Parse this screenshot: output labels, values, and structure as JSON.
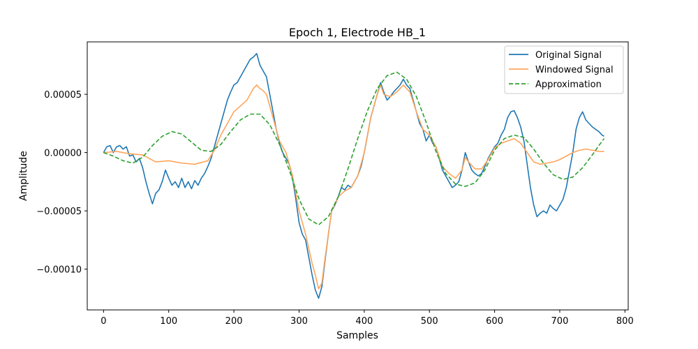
{
  "chart_data": {
    "type": "line",
    "title": "Epoch 1, Electrode HB_1",
    "xlabel": "Samples",
    "ylabel": "Amplitude",
    "xlim": [
      -25,
      805
    ],
    "ylim": [
      -0.000135,
      9.5e-05
    ],
    "xticks": [
      0,
      100,
      200,
      300,
      400,
      500,
      600,
      700,
      800
    ],
    "xtick_labels": [
      "0",
      "100",
      "200",
      "300",
      "400",
      "500",
      "600",
      "700",
      "800"
    ],
    "yticks": [
      -0.0001,
      -5e-05,
      0.0,
      5e-05
    ],
    "ytick_labels": [
      "−0.00010",
      "−0.00005",
      "0.00000",
      "0.00005"
    ],
    "grid": false,
    "legend_position": "top-right",
    "series": [
      {
        "name": "Original Signal",
        "color": "#1f77b4",
        "style": "solid",
        "points": [
          [
            0,
            0.0
          ],
          [
            5,
            5e-06
          ],
          [
            10,
            6e-06
          ],
          [
            15,
            0.0
          ],
          [
            20,
            5e-06
          ],
          [
            25,
            6e-06
          ],
          [
            30,
            3e-06
          ],
          [
            35,
            5e-06
          ],
          [
            40,
            -3e-06
          ],
          [
            45,
            -2e-06
          ],
          [
            50,
            -8e-06
          ],
          [
            55,
            -5e-06
          ],
          [
            60,
            -1.3e-05
          ],
          [
            65,
            -2.5e-05
          ],
          [
            70,
            -3.5e-05
          ],
          [
            75,
            -4.4e-05
          ],
          [
            80,
            -3.5e-05
          ],
          [
            85,
            -3.2e-05
          ],
          [
            90,
            -2.5e-05
          ],
          [
            95,
            -1.5e-05
          ],
          [
            100,
            -2.2e-05
          ],
          [
            105,
            -2.8e-05
          ],
          [
            110,
            -2.5e-05
          ],
          [
            115,
            -3e-05
          ],
          [
            120,
            -2.2e-05
          ],
          [
            125,
            -3e-05
          ],
          [
            130,
            -2.5e-05
          ],
          [
            135,
            -3.1e-05
          ],
          [
            140,
            -2.4e-05
          ],
          [
            145,
            -2.8e-05
          ],
          [
            150,
            -2.2e-05
          ],
          [
            155,
            -1.8e-05
          ],
          [
            160,
            -1.2e-05
          ],
          [
            165,
            -5e-06
          ],
          [
            170,
            5e-06
          ],
          [
            175,
            1.5e-05
          ],
          [
            180,
            2.5e-05
          ],
          [
            185,
            3.5e-05
          ],
          [
            190,
            4.5e-05
          ],
          [
            195,
            5.2e-05
          ],
          [
            200,
            5.8e-05
          ],
          [
            205,
            6e-05
          ],
          [
            210,
            6.5e-05
          ],
          [
            215,
            7e-05
          ],
          [
            220,
            7.5e-05
          ],
          [
            225,
            8e-05
          ],
          [
            230,
            8.2e-05
          ],
          [
            235,
            8.5e-05
          ],
          [
            240,
            7.5e-05
          ],
          [
            245,
            7e-05
          ],
          [
            250,
            6.5e-05
          ],
          [
            255,
            5e-05
          ],
          [
            260,
            3.5e-05
          ],
          [
            265,
            2e-05
          ],
          [
            270,
            8e-06
          ],
          [
            275,
            0.0
          ],
          [
            280,
            -5e-06
          ],
          [
            285,
            -1e-05
          ],
          [
            290,
            -2.2e-05
          ],
          [
            295,
            -4e-05
          ],
          [
            300,
            -6e-05
          ],
          [
            305,
            -7e-05
          ],
          [
            310,
            -7.5e-05
          ],
          [
            315,
            -9e-05
          ],
          [
            320,
            -0.000105
          ],
          [
            325,
            -0.000118
          ],
          [
            330,
            -0.000125
          ],
          [
            335,
            -0.000115
          ],
          [
            340,
            -9.2e-05
          ],
          [
            345,
            -7e-05
          ],
          [
            350,
            -5e-05
          ],
          [
            355,
            -4.5e-05
          ],
          [
            360,
            -3.8e-05
          ],
          [
            365,
            -3e-05
          ],
          [
            370,
            -3.2e-05
          ],
          [
            375,
            -2.8e-05
          ],
          [
            380,
            -3e-05
          ],
          [
            385,
            -2.5e-05
          ],
          [
            390,
            -2e-05
          ],
          [
            395,
            -1.2e-05
          ],
          [
            400,
            0.0
          ],
          [
            405,
            1.5e-05
          ],
          [
            410,
            3e-05
          ],
          [
            415,
            4e-05
          ],
          [
            420,
            5e-05
          ],
          [
            425,
            6e-05
          ],
          [
            430,
            5.2e-05
          ],
          [
            435,
            4.5e-05
          ],
          [
            440,
            4.8e-05
          ],
          [
            445,
            5.2e-05
          ],
          [
            450,
            5.5e-05
          ],
          [
            455,
            5.8e-05
          ],
          [
            460,
            6.3e-05
          ],
          [
            465,
            5.8e-05
          ],
          [
            470,
            5.5e-05
          ],
          [
            475,
            4.5e-05
          ],
          [
            480,
            3.5e-05
          ],
          [
            485,
            2.5e-05
          ],
          [
            490,
            2e-05
          ],
          [
            495,
            1e-05
          ],
          [
            500,
            1.5e-05
          ],
          [
            505,
            8e-06
          ],
          [
            510,
            5e-06
          ],
          [
            515,
            -5e-06
          ],
          [
            520,
            -1.5e-05
          ],
          [
            525,
            -2e-05
          ],
          [
            530,
            -2.5e-05
          ],
          [
            535,
            -3e-05
          ],
          [
            540,
            -2.8e-05
          ],
          [
            545,
            -2.5e-05
          ],
          [
            550,
            -1.5e-05
          ],
          [
            555,
            0.0
          ],
          [
            560,
            -8e-06
          ],
          [
            565,
            -1.5e-05
          ],
          [
            570,
            -1.8e-05
          ],
          [
            575,
            -2e-05
          ],
          [
            580,
            -1.8e-05
          ],
          [
            585,
            -1.2e-05
          ],
          [
            590,
            -5e-06
          ],
          [
            595,
            0.0
          ],
          [
            600,
            5e-06
          ],
          [
            605,
            8e-06
          ],
          [
            610,
            1.5e-05
          ],
          [
            615,
            2e-05
          ],
          [
            620,
            3e-05
          ],
          [
            625,
            3.5e-05
          ],
          [
            630,
            3.6e-05
          ],
          [
            635,
            3e-05
          ],
          [
            640,
            2.2e-05
          ],
          [
            645,
            1e-05
          ],
          [
            650,
            -1e-05
          ],
          [
            655,
            -3e-05
          ],
          [
            660,
            -4.5e-05
          ],
          [
            665,
            -5.5e-05
          ],
          [
            670,
            -5.2e-05
          ],
          [
            675,
            -5e-05
          ],
          [
            680,
            -5.2e-05
          ],
          [
            685,
            -4.5e-05
          ],
          [
            690,
            -4.8e-05
          ],
          [
            695,
            -5e-05
          ],
          [
            700,
            -4.5e-05
          ],
          [
            705,
            -4e-05
          ],
          [
            710,
            -3e-05
          ],
          [
            715,
            -1.5e-05
          ],
          [
            720,
            0.0
          ],
          [
            725,
            2e-05
          ],
          [
            730,
            3e-05
          ],
          [
            735,
            3.5e-05
          ],
          [
            740,
            2.8e-05
          ],
          [
            745,
            2.5e-05
          ],
          [
            750,
            2.2e-05
          ],
          [
            755,
            2e-05
          ],
          [
            760,
            1.8e-05
          ],
          [
            765,
            1.5e-05
          ],
          [
            768,
            1.4e-05
          ]
        ]
      },
      {
        "name": "Windowed Signal",
        "color": "#ffa55a",
        "style": "solid",
        "points": [
          [
            0,
            0.0
          ],
          [
            20,
            1e-06
          ],
          [
            40,
            -1e-06
          ],
          [
            60,
            -2e-06
          ],
          [
            80,
            -8e-06
          ],
          [
            100,
            -7e-06
          ],
          [
            120,
            -9e-06
          ],
          [
            140,
            -1e-05
          ],
          [
            160,
            -7e-06
          ],
          [
            170,
            2e-06
          ],
          [
            180,
            1.5e-05
          ],
          [
            190,
            2.5e-05
          ],
          [
            200,
            3.5e-05
          ],
          [
            210,
            4e-05
          ],
          [
            220,
            4.5e-05
          ],
          [
            230,
            5.5e-05
          ],
          [
            235,
            5.8e-05
          ],
          [
            240,
            5.5e-05
          ],
          [
            245,
            5.3e-05
          ],
          [
            250,
            5e-05
          ],
          [
            260,
            3e-05
          ],
          [
            270,
            1e-05
          ],
          [
            280,
            0.0
          ],
          [
            290,
            -2e-05
          ],
          [
            300,
            -5e-05
          ],
          [
            310,
            -7e-05
          ],
          [
            320,
            -9.5e-05
          ],
          [
            325,
            -0.000105
          ],
          [
            330,
            -0.000117
          ],
          [
            335,
            -0.000112
          ],
          [
            340,
            -9e-05
          ],
          [
            350,
            -5e-05
          ],
          [
            360,
            -3.8e-05
          ],
          [
            370,
            -3.3e-05
          ],
          [
            380,
            -3e-05
          ],
          [
            390,
            -2e-05
          ],
          [
            400,
            0.0
          ],
          [
            410,
            3e-05
          ],
          [
            420,
            5e-05
          ],
          [
            425,
            5.8e-05
          ],
          [
            430,
            5e-05
          ],
          [
            440,
            4.8e-05
          ],
          [
            450,
            5.2e-05
          ],
          [
            460,
            5.8e-05
          ],
          [
            470,
            5.2e-05
          ],
          [
            480,
            3.5e-05
          ],
          [
            490,
            2e-05
          ],
          [
            500,
            1.5e-05
          ],
          [
            510,
            5e-06
          ],
          [
            520,
            -1.2e-05
          ],
          [
            530,
            -1.8e-05
          ],
          [
            540,
            -2.2e-05
          ],
          [
            550,
            -1.5e-05
          ],
          [
            555,
            -4e-06
          ],
          [
            560,
            -8e-06
          ],
          [
            570,
            -1.4e-05
          ],
          [
            580,
            -1.4e-05
          ],
          [
            590,
            -6e-06
          ],
          [
            600,
            4e-06
          ],
          [
            610,
            8e-06
          ],
          [
            620,
            1e-05
          ],
          [
            630,
            1.2e-05
          ],
          [
            640,
            8e-06
          ],
          [
            650,
            0.0
          ],
          [
            660,
            -8e-06
          ],
          [
            670,
            -1e-05
          ],
          [
            680,
            -9e-06
          ],
          [
            690,
            -8e-06
          ],
          [
            700,
            -6e-06
          ],
          [
            710,
            -3e-06
          ],
          [
            720,
            0.0
          ],
          [
            730,
            2e-06
          ],
          [
            740,
            3e-06
          ],
          [
            750,
            2e-06
          ],
          [
            760,
            1e-06
          ],
          [
            768,
            1e-06
          ]
        ]
      },
      {
        "name": "Approximation",
        "color": "#2ca02c",
        "style": "dashed",
        "points": [
          [
            0,
            0.0
          ],
          [
            15,
            -3e-06
          ],
          [
            30,
            -7e-06
          ],
          [
            45,
            -9e-06
          ],
          [
            60,
            -4e-06
          ],
          [
            75,
            6e-06
          ],
          [
            90,
            1.4e-05
          ],
          [
            105,
            1.8e-05
          ],
          [
            120,
            1.6e-05
          ],
          [
            135,
            9e-06
          ],
          [
            150,
            2e-06
          ],
          [
            165,
            1e-06
          ],
          [
            180,
            7e-06
          ],
          [
            195,
            1.8e-05
          ],
          [
            210,
            2.8e-05
          ],
          [
            225,
            3.3e-05
          ],
          [
            240,
            3.3e-05
          ],
          [
            255,
            2.4e-05
          ],
          [
            270,
            7e-06
          ],
          [
            285,
            -1.5e-05
          ],
          [
            300,
            -4e-05
          ],
          [
            315,
            -5.7e-05
          ],
          [
            330,
            -6.2e-05
          ],
          [
            345,
            -5.5e-05
          ],
          [
            360,
            -3.8e-05
          ],
          [
            375,
            -1.4e-05
          ],
          [
            390,
            1.2e-05
          ],
          [
            405,
            3.6e-05
          ],
          [
            420,
            5.5e-05
          ],
          [
            435,
            6.6e-05
          ],
          [
            450,
            6.9e-05
          ],
          [
            465,
            6.3e-05
          ],
          [
            480,
            4.8e-05
          ],
          [
            495,
            2.6e-05
          ],
          [
            510,
            1e-06
          ],
          [
            525,
            -1.8e-05
          ],
          [
            540,
            -2.7e-05
          ],
          [
            555,
            -2.9e-05
          ],
          [
            570,
            -2.6e-05
          ],
          [
            585,
            -1.5e-05
          ],
          [
            600,
            2e-06
          ],
          [
            615,
            1.2e-05
          ],
          [
            630,
            1.5e-05
          ],
          [
            645,
            1.3e-05
          ],
          [
            660,
            3e-06
          ],
          [
            675,
            -9e-06
          ],
          [
            690,
            -1.9e-05
          ],
          [
            705,
            -2.3e-05
          ],
          [
            720,
            -2.1e-05
          ],
          [
            735,
            -1.3e-05
          ],
          [
            750,
            -2e-06
          ],
          [
            760,
            6e-06
          ],
          [
            768,
            1.2e-05
          ]
        ]
      }
    ]
  }
}
